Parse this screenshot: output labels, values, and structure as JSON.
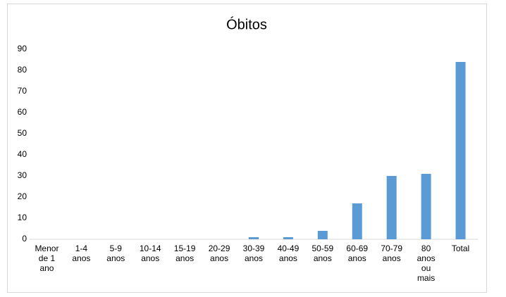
{
  "chart_data": {
    "type": "bar",
    "title": "Óbitos",
    "categories": [
      "Menor de 1 ano",
      "1-4 anos",
      "5-9 anos",
      "10-14 anos",
      "15-19 anos",
      "20-29 anos",
      "30-39 anos",
      "40-49 anos",
      "50-59 anos",
      "60-69 anos",
      "70-79 anos",
      "80 anos ou mais",
      "Total"
    ],
    "values": [
      0,
      0,
      0,
      0,
      0,
      0,
      1,
      1,
      4,
      17,
      30,
      31,
      84
    ],
    "color": "#5b9bd5",
    "ylim": [
      0,
      90
    ],
    "yticks": [
      0,
      10,
      20,
      30,
      40,
      50,
      60,
      70,
      80,
      90
    ],
    "grid": false
  }
}
